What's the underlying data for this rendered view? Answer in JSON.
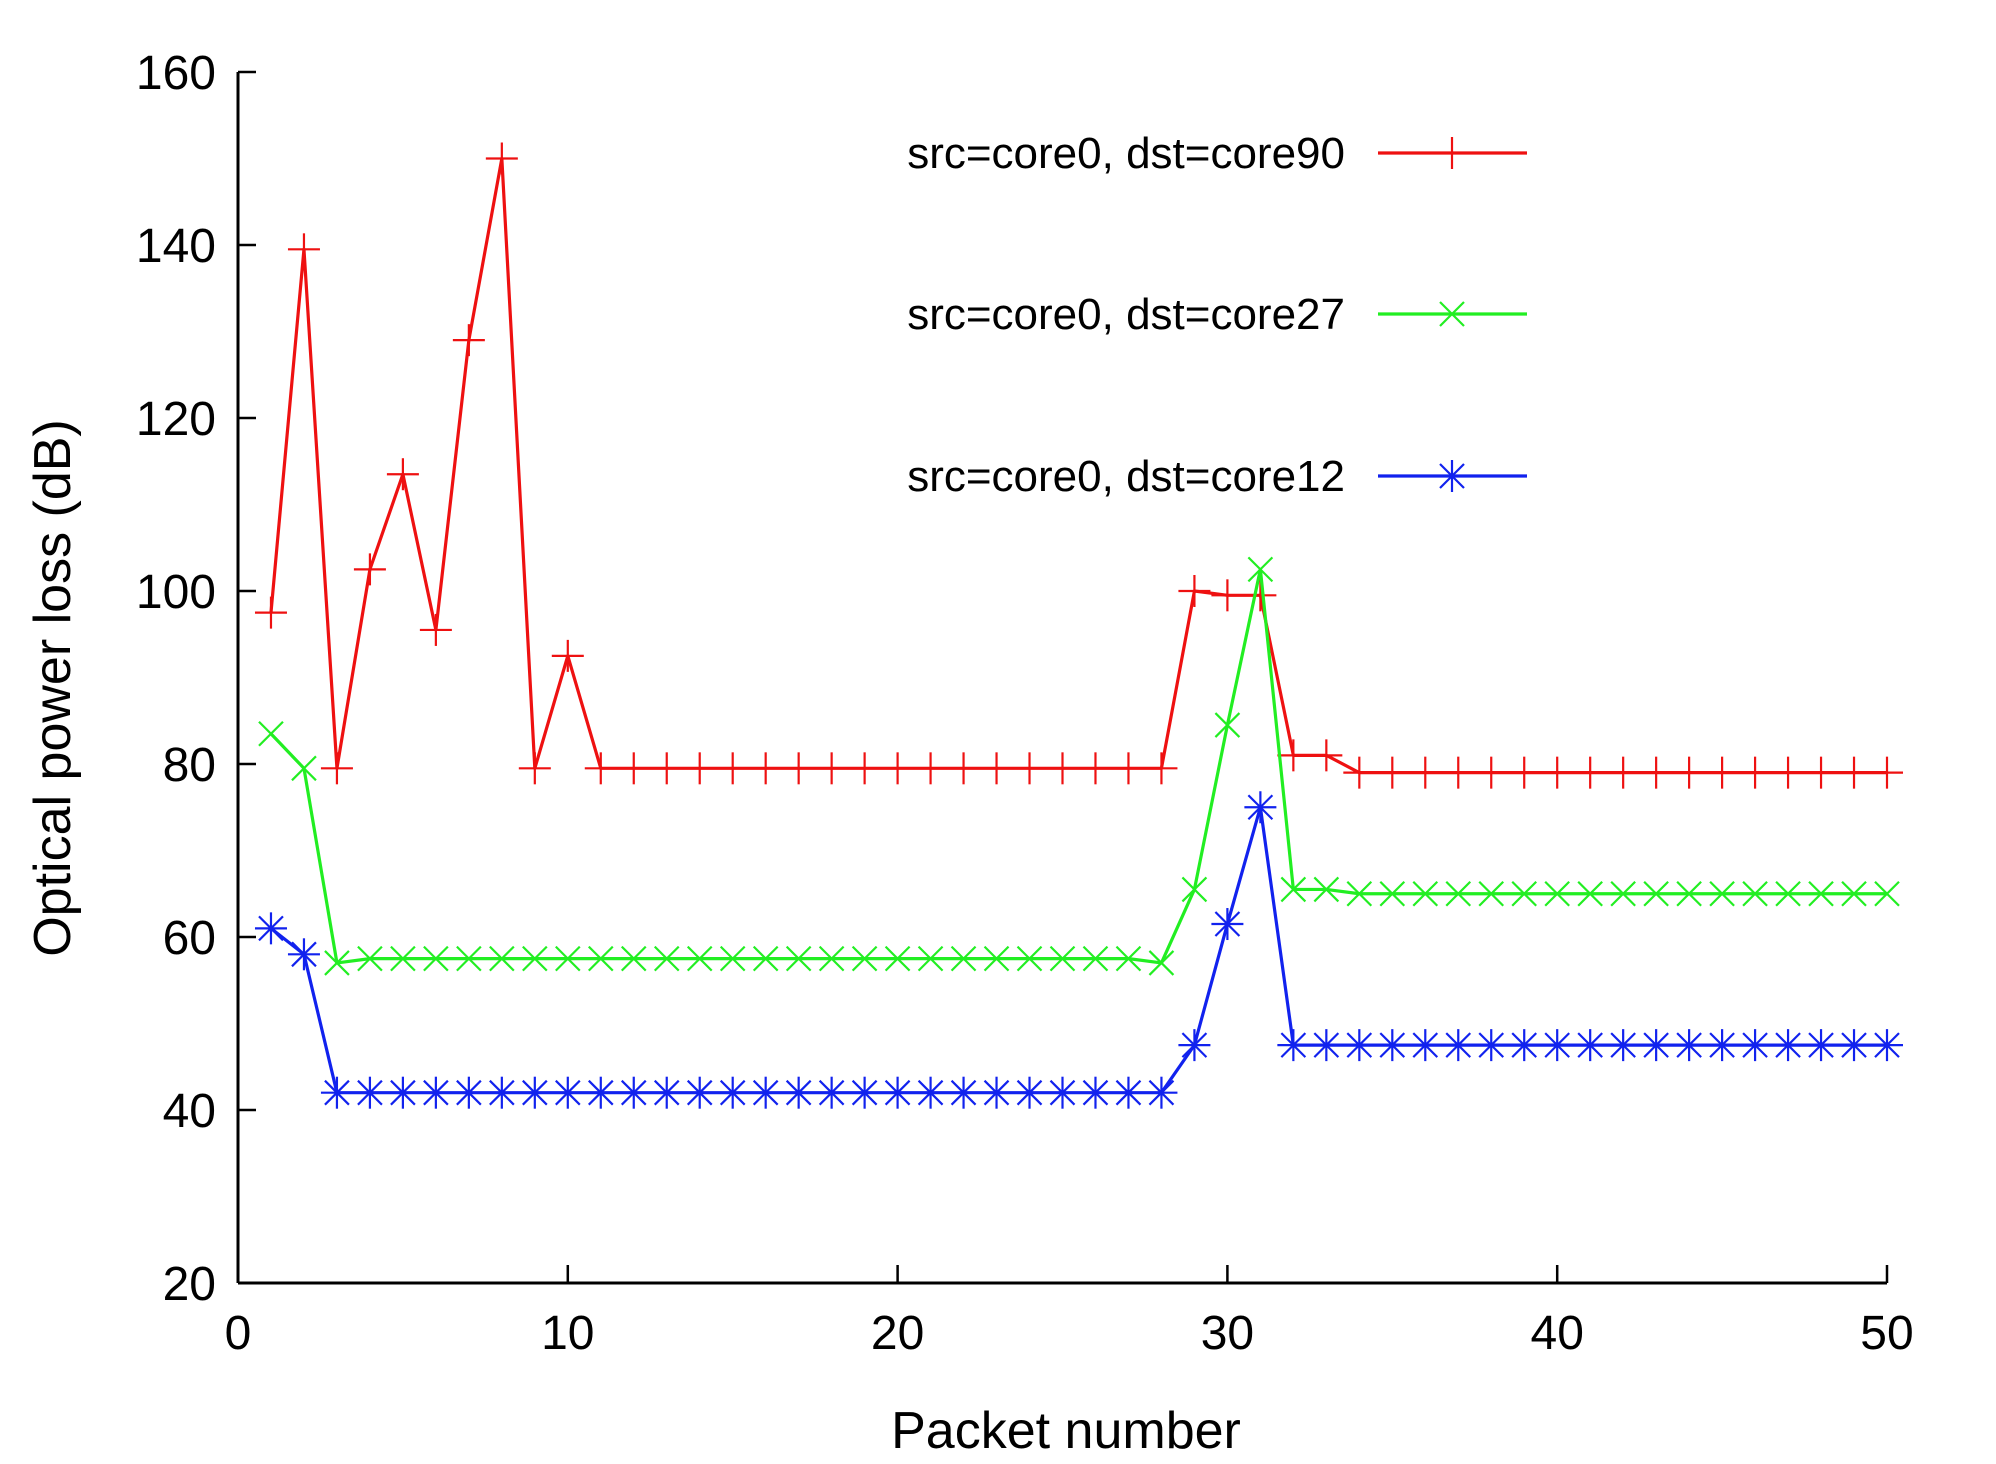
{
  "chart_data": {
    "type": "line",
    "xlabel": "Packet number",
    "ylabel": "Optical power loss (dB)",
    "xlim": [
      0,
      50
    ],
    "ylim": [
      20,
      160
    ],
    "xticks": [
      0,
      10,
      20,
      30,
      40,
      50
    ],
    "yticks": [
      20,
      40,
      60,
      80,
      100,
      120,
      140,
      160
    ],
    "grid": false,
    "legend_position": "top-right",
    "series": [
      {
        "name": "src=core0, dst=core90",
        "color": "#ee1111",
        "marker": "plus",
        "x": [
          1,
          2,
          3,
          4,
          5,
          6,
          7,
          8,
          9,
          10,
          11,
          12,
          13,
          14,
          15,
          16,
          17,
          18,
          19,
          20,
          21,
          22,
          23,
          24,
          25,
          26,
          27,
          28,
          29,
          30,
          31,
          32,
          33,
          34,
          35,
          36,
          37,
          38,
          39,
          40,
          41,
          42,
          43,
          44,
          45,
          46,
          47,
          48,
          49,
          50
        ],
        "values": [
          97.5,
          139.5,
          79.5,
          102.5,
          113.5,
          95.5,
          129,
          150,
          79.5,
          92.5,
          79.5,
          79.5,
          79.5,
          79.5,
          79.5,
          79.5,
          79.5,
          79.5,
          79.5,
          79.5,
          79.5,
          79.5,
          79.5,
          79.5,
          79.5,
          79.5,
          79.5,
          79.5,
          100,
          99.5,
          99.5,
          81,
          81,
          79,
          79,
          79,
          79,
          79,
          79,
          79,
          79,
          79,
          79,
          79,
          79,
          79,
          79,
          79,
          79,
          79
        ]
      },
      {
        "name": "src=core0, dst=core27",
        "color": "#22ee22",
        "marker": "cross",
        "x": [
          1,
          2,
          3,
          4,
          5,
          6,
          7,
          8,
          9,
          10,
          11,
          12,
          13,
          14,
          15,
          16,
          17,
          18,
          19,
          20,
          21,
          22,
          23,
          24,
          25,
          26,
          27,
          28,
          29,
          30,
          31,
          32,
          33,
          34,
          35,
          36,
          37,
          38,
          39,
          40,
          41,
          42,
          43,
          44,
          45,
          46,
          47,
          48,
          49,
          50
        ],
        "values": [
          83.5,
          79.5,
          57,
          57.5,
          57.5,
          57.5,
          57.5,
          57.5,
          57.5,
          57.5,
          57.5,
          57.5,
          57.5,
          57.5,
          57.5,
          57.5,
          57.5,
          57.5,
          57.5,
          57.5,
          57.5,
          57.5,
          57.5,
          57.5,
          57.5,
          57.5,
          57.5,
          57,
          65.5,
          84.5,
          102.5,
          65.5,
          65.5,
          65,
          65,
          65,
          65,
          65,
          65,
          65,
          65,
          65,
          65,
          65,
          65,
          65,
          65,
          65,
          65,
          65
        ]
      },
      {
        "name": "src=core0, dst=core12",
        "color": "#1122ee",
        "marker": "star",
        "x": [
          1,
          2,
          3,
          4,
          5,
          6,
          7,
          8,
          9,
          10,
          11,
          12,
          13,
          14,
          15,
          16,
          17,
          18,
          19,
          20,
          21,
          22,
          23,
          24,
          25,
          26,
          27,
          28,
          29,
          30,
          31,
          32,
          33,
          34,
          35,
          36,
          37,
          38,
          39,
          40,
          41,
          42,
          43,
          44,
          45,
          46,
          47,
          48,
          49,
          50
        ],
        "values": [
          61,
          58,
          42,
          42,
          42,
          42,
          42,
          42,
          42,
          42,
          42,
          42,
          42,
          42,
          42,
          42,
          42,
          42,
          42,
          42,
          42,
          42,
          42,
          42,
          42,
          42,
          42,
          42,
          47.5,
          61.5,
          75,
          47.5,
          47.5,
          47.5,
          47.5,
          47.5,
          47.5,
          47.5,
          47.5,
          47.5,
          47.5,
          47.5,
          47.5,
          47.5,
          47.5,
          47.5,
          47.5,
          47.5,
          47.5,
          47.5
        ]
      }
    ]
  }
}
